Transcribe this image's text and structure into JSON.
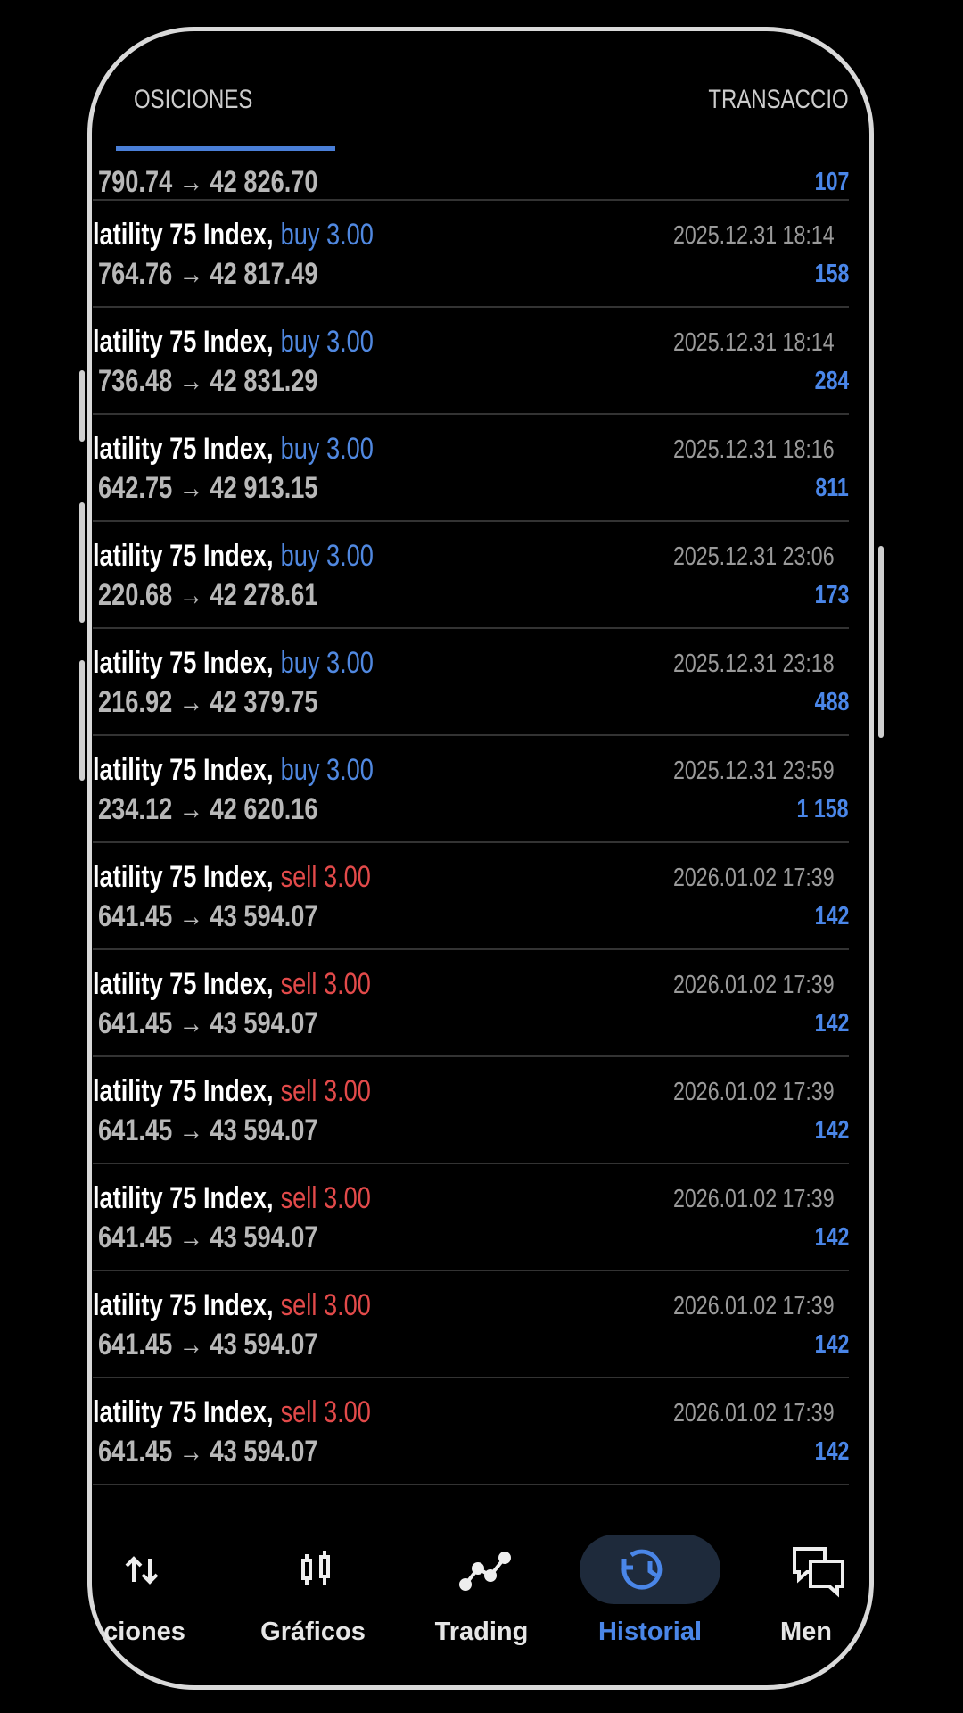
{
  "tabs": [
    "OSICIONES",
    "TRANSACCIO"
  ],
  "rows": [
    {
      "prices": "790.74 → 42 826.70",
      "profit": "107"
    },
    {
      "symbol": "latility 75 Index,",
      "side": "buy 3.00",
      "time": "2025.12.31 18:14",
      "prices": "764.76 → 42 817.49",
      "profit": "158"
    },
    {
      "symbol": "latility 75 Index,",
      "side": "buy 3.00",
      "time": "2025.12.31 18:14",
      "prices": "736.48 → 42 831.29",
      "profit": "284"
    },
    {
      "symbol": "latility 75 Index,",
      "side": "buy 3.00",
      "time": "2025.12.31 18:16",
      "prices": "642.75 → 42 913.15",
      "profit": "811"
    },
    {
      "symbol": "latility 75 Index,",
      "side": "buy 3.00",
      "time": "2025.12.31 23:06",
      "prices": "220.68 → 42 278.61",
      "profit": "173"
    },
    {
      "symbol": "latility 75 Index,",
      "side": "buy 3.00",
      "time": "2025.12.31 23:18",
      "prices": "216.92 → 42 379.75",
      "profit": "488"
    },
    {
      "symbol": "latility 75 Index,",
      "side": "buy 3.00",
      "time": "2025.12.31 23:59",
      "prices": "234.12 → 42 620.16",
      "profit": "1 158"
    },
    {
      "symbol": "latility 75 Index,",
      "side": "sell 3.00",
      "time": "2026.01.02 17:39",
      "prices": "641.45 → 43 594.07",
      "profit": "142"
    },
    {
      "symbol": "latility 75 Index,",
      "side": "sell 3.00",
      "time": "2026.01.02 17:39",
      "prices": "641.45 → 43 594.07",
      "profit": "142"
    },
    {
      "symbol": "latility 75 Index,",
      "side": "sell 3.00",
      "time": "2026.01.02 17:39",
      "prices": "641.45 → 43 594.07",
      "profit": "142"
    },
    {
      "symbol": "latility 75 Index,",
      "side": "sell 3.00",
      "time": "2026.01.02 17:39",
      "prices": "641.45 → 43 594.07",
      "profit": "142"
    },
    {
      "symbol": "latility 75 Index,",
      "side": "sell 3.00",
      "time": "2026.01.02 17:39",
      "prices": "641.45 → 43 594.07",
      "profit": "142"
    },
    {
      "symbol": "latility 75 Index,",
      "side": "sell 3.00",
      "time": "2026.01.02 17:39",
      "prices": "641.45 → 43 594.07",
      "profit": "142"
    }
  ],
  "nav": [
    "ciones",
    "Gráficos",
    "Trading",
    "Historial",
    "Men"
  ],
  "active_nav": 3
}
